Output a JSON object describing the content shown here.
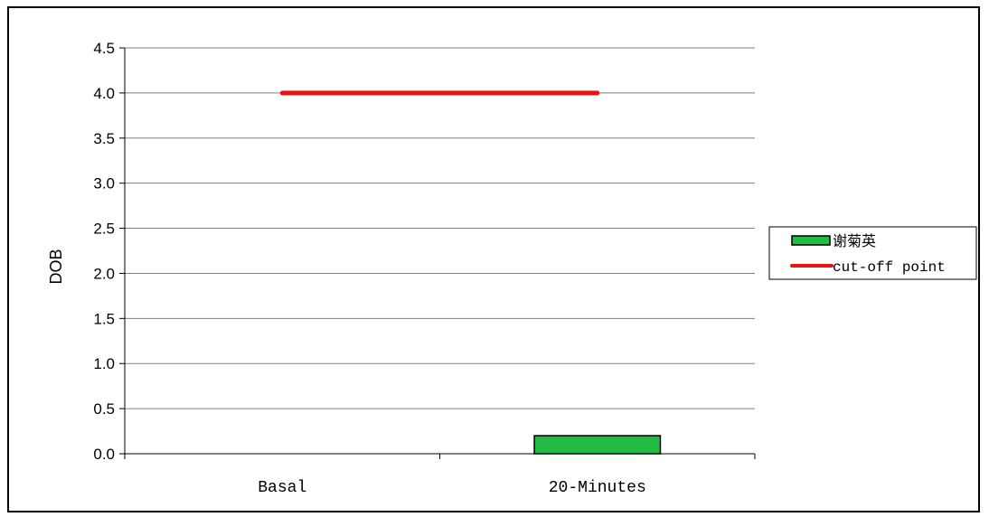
{
  "chart_data": {
    "type": "bar",
    "title": "",
    "xlabel": "",
    "ylabel": "DOB",
    "categories": [
      "Basal",
      "20-Minutes"
    ],
    "ylim": [
      0,
      4.5
    ],
    "yticks": [
      "0.0",
      "0.5",
      "1.0",
      "1.5",
      "2.0",
      "2.5",
      "3.0",
      "3.5",
      "4.0",
      "4.5"
    ],
    "grid": true,
    "legend_position": "right",
    "series": [
      {
        "name": "谢菊英",
        "type": "bar",
        "color": "#22bb44",
        "values": [
          0,
          0.2
        ]
      },
      {
        "name": "cut-off point",
        "type": "line",
        "color": "#ee1111",
        "values": [
          4.0,
          4.0
        ]
      }
    ]
  }
}
